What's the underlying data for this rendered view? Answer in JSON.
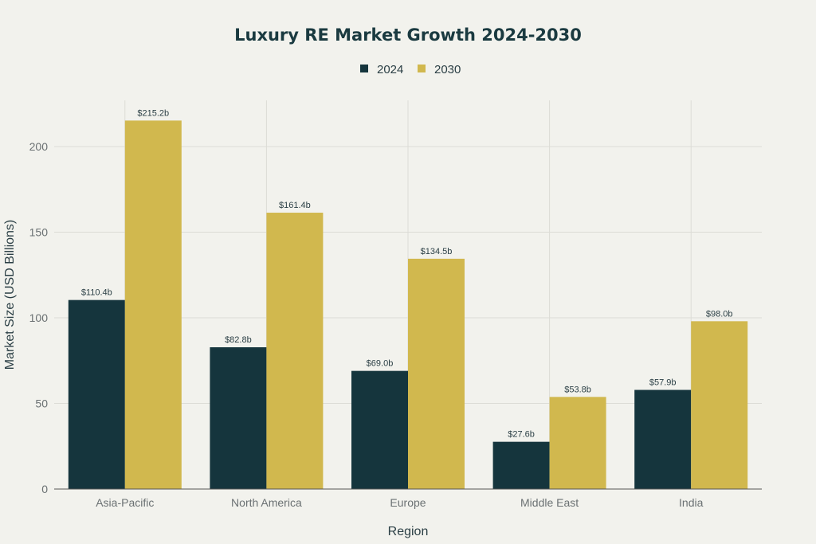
{
  "chart_data": {
    "type": "bar",
    "title": "Luxury RE Market Growth 2024-2030",
    "xlabel": "Region",
    "ylabel": "Market Size (USD Billions)",
    "categories": [
      "Asia-Pacific",
      "North America",
      "Europe",
      "Middle East",
      "India"
    ],
    "series": [
      {
        "name": "2024",
        "color": "#15353d",
        "values": [
          110.4,
          82.8,
          69.0,
          27.6,
          57.9
        ],
        "labels": [
          "$110.4b",
          "$82.8b",
          "$69.0b",
          "$27.6b",
          "$57.9b"
        ]
      },
      {
        "name": "2030",
        "color": "#d1b84e",
        "values": [
          215.2,
          161.4,
          134.5,
          53.8,
          98.0
        ],
        "labels": [
          "$215.2b",
          "$161.4b",
          "$134.5b",
          "$53.8b",
          "$98.0b"
        ]
      }
    ],
    "ylim": [
      0,
      227
    ],
    "yticks": [
      0,
      50,
      100,
      150,
      200
    ],
    "ytick_labels": [
      "0",
      "50",
      "100",
      "150",
      "200"
    ],
    "grid": true,
    "legend_position": "top-center"
  }
}
